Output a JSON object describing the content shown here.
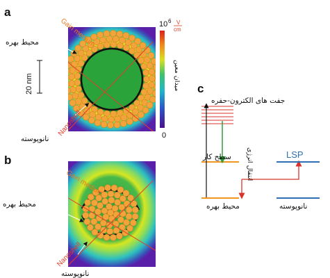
{
  "panels": {
    "a": {
      "letter": "a",
      "gain_medium_fa": "محیط بهره",
      "gain_medium_en": "Gain medium",
      "nanoshell_fa": "نانوپوسته",
      "nanoshell_en": "Nanoshell",
      "scale_bar": "20 nm",
      "colorbar": {
        "max_label": "10",
        "max_exp": "6",
        "unit_num": "V",
        "unit_den": "cm",
        "min_label": "0",
        "title_fa": "میدان معین"
      }
    },
    "b": {
      "letter": "b",
      "gain_medium_fa": "محیط بهره",
      "gain_medium_en": "Gain medium",
      "nanoshell_fa": "نانوپوسته",
      "nanoshell_en": "Nanoshell"
    },
    "c": {
      "letter": "c",
      "pair_label": "جفت های الکترون-حفره",
      "work_level": "سطح کار",
      "energy_transfer": "انتقال انرژی",
      "lsp_label": "LSP",
      "gain_medium_fa": "محیط بهره",
      "nanoshell_fa": "نانوپوسته"
    }
  },
  "colors": {
    "field_low": "#5a1fa8",
    "field_mid": "#20c4b0",
    "field_high": "#f0e020",
    "core_green": "#2aa33a",
    "bead_orange": "#f2a43a",
    "level_orange": "#f0961e",
    "level_blue": "#2e6fb3",
    "arrow_red": "#d9342b",
    "arrow_green": "#2aa33a"
  }
}
